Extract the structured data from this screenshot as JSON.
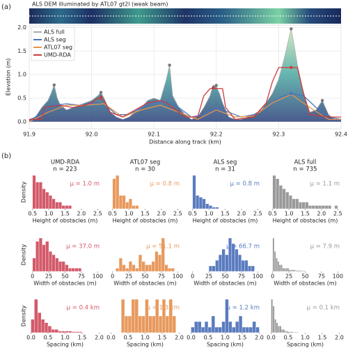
{
  "panel_labels": [
    "(a)",
    "(b)"
  ],
  "chart_data": [
    {
      "type": "line",
      "title": "ALS DEM illuminated by ATL07 gt2l (weak beam)",
      "xlabel": "Distance along track (km)",
      "ylabel": "Elevation (m)",
      "xlim": [
        91.9,
        92.4
      ],
      "xticks": [
        91.9,
        {
          "value": 92.0,
          "label": "92.0"
        },
        92.1,
        92.2,
        92.3,
        92.4
      ],
      "ylim": [
        -0.15,
        2.05
      ],
      "yticks": [
        {
          "value": 0,
          "label": "0.0"
        },
        0.5,
        {
          "value": 1,
          "label": "1.0"
        },
        1.5,
        {
          "value": 2,
          "label": "2.0"
        }
      ],
      "grid": true,
      "legend": "upper left",
      "series": [
        {
          "name": "ALS full",
          "color": "#aaaaaa",
          "area": true,
          "x": [
            91.9,
            91.91,
            91.92,
            91.93,
            91.935,
            91.94,
            91.945,
            91.95,
            91.96,
            91.97,
            91.98,
            91.99,
            92.0,
            92.01,
            92.015,
            92.02,
            92.03,
            92.04,
            92.05,
            92.06,
            92.07,
            92.08,
            92.09,
            92.1,
            92.11,
            92.12,
            92.125,
            92.13,
            92.14,
            92.15,
            92.16,
            92.17,
            92.18,
            92.19,
            92.195,
            92.2,
            92.205,
            92.21,
            92.22,
            92.23,
            92.24,
            92.25,
            92.26,
            92.27,
            92.28,
            92.29,
            92.3,
            92.31,
            92.32,
            92.325,
            92.33,
            92.34,
            92.35,
            92.36,
            92.37,
            92.38,
            92.39,
            92.4
          ],
          "values": [
            0.05,
            0.1,
            0.3,
            0.45,
            0.6,
            0.78,
            0.5,
            0.35,
            0.25,
            0.3,
            0.35,
            0.4,
            0.45,
            0.55,
            0.62,
            0.5,
            0.2,
            0.1,
            0.05,
            0.1,
            0.2,
            0.3,
            0.45,
            0.5,
            0.45,
            0.9,
            1.2,
            0.55,
            0.3,
            0.15,
            0.05,
            0.1,
            0.3,
            0.55,
            0.78,
            0.75,
            0.6,
            0.4,
            0.1,
            0.05,
            0.05,
            0.1,
            0.15,
            0.2,
            0.4,
            0.6,
            0.9,
            1.4,
            1.97,
            1.6,
            1.2,
            0.6,
            0.2,
            0.25,
            0.45,
            0.15,
            0.05,
            0.05
          ]
        },
        {
          "name": "ALS seg",
          "color": "#4a74c0",
          "x": [
            91.9,
            91.92,
            91.94,
            91.96,
            91.98,
            92.0,
            92.02,
            92.04,
            92.06,
            92.08,
            92.1,
            92.12,
            92.14,
            92.16,
            92.18,
            92.2,
            92.22,
            92.24,
            92.26,
            92.28,
            92.3,
            92.32,
            92.34,
            92.36,
            92.38,
            92.4
          ],
          "values": [
            0.0,
            0.2,
            0.35,
            0.38,
            0.35,
            0.4,
            0.38,
            0.15,
            0.15,
            0.3,
            0.4,
            0.42,
            0.3,
            0.1,
            0.15,
            0.3,
            0.2,
            0.1,
            0.15,
            0.3,
            0.5,
            0.6,
            0.55,
            0.3,
            0.1,
            0.05
          ]
        },
        {
          "name": "ATL07 seg",
          "color": "#e8944a",
          "x": [
            91.9,
            91.93,
            91.96,
            91.99,
            92.02,
            92.05,
            92.08,
            92.11,
            92.14,
            92.17,
            92.2,
            92.23,
            92.26,
            92.29,
            92.32,
            92.35,
            92.38,
            92.4
          ],
          "values": [
            0.0,
            0.2,
            0.35,
            0.35,
            0.38,
            0.1,
            0.25,
            0.35,
            0.2,
            0.05,
            0.25,
            0.1,
            0.12,
            0.4,
            0.58,
            0.3,
            0.05,
            0.05
          ]
        },
        {
          "name": "UMD-RDA",
          "color": "#cc3a3a",
          "x": [
            91.9,
            91.92,
            91.925,
            91.95,
            91.97,
            91.99,
            92.0,
            92.01,
            92.02,
            92.03,
            92.05,
            92.07,
            92.09,
            92.11,
            92.12,
            92.13,
            92.15,
            92.17,
            92.18,
            92.19,
            92.21,
            92.215,
            92.23,
            92.26,
            92.28,
            92.29,
            92.3,
            92.33,
            92.34,
            92.35,
            92.38,
            92.4
          ],
          "values": [
            0.05,
            0.05,
            0.3,
            0.35,
            0.3,
            0.35,
            0.4,
            0.5,
            0.45,
            0.2,
            0.1,
            0.25,
            0.4,
            0.45,
            0.4,
            0.3,
            0.1,
            0.1,
            0.55,
            0.7,
            0.7,
            0.3,
            0.05,
            0.1,
            0.4,
            0.85,
            1.15,
            1.15,
            0.6,
            0.15,
            0.1,
            0.1
          ]
        }
      ],
      "markers": {
        "x": [
          91.94,
          92.015,
          92.125,
          92.2,
          92.32,
          92.37,
          92.015,
          92.195,
          92.32,
          92.32
        ],
        "values": [
          0.78,
          0.62,
          1.2,
          0.77,
          1.97,
          0.45,
          0.52,
          0.72,
          1.15,
          0.6
        ],
        "colors": [
          "#777777",
          "#777777",
          "#777777",
          "#777777",
          "#777777",
          "#777777",
          "#cc3a3a",
          "#cc3a3a",
          "#cc3a3a",
          "#4a74c0"
        ]
      }
    },
    {
      "type": "histogram",
      "title": "UMD-RDA",
      "subtitle": "n = 223",
      "ylabel": "Density",
      "xlabel": "Height of obstacles (m)",
      "annotation": "μ = 1.0 m",
      "color": "#d35a6a",
      "xlim": [
        0.4,
        2.6
      ],
      "xticks": [
        0.5,
        {
          "value": 1,
          "label": "1.0"
        },
        1.5,
        {
          "value": 2,
          "label": "2.0"
        },
        2.5
      ],
      "bins": [
        0.5,
        0.6,
        0.7,
        0.8,
        0.9,
        1.0,
        1.1,
        1.2,
        1.3,
        1.4,
        1.5,
        1.6,
        1.7
      ],
      "values": [
        10,
        8,
        8,
        6,
        5,
        4,
        3,
        2,
        2,
        1,
        1,
        1
      ]
    },
    {
      "type": "histogram",
      "title": "ATL07 seg",
      "subtitle": "n = 30",
      "xlabel": "Height of obstacles (m)",
      "annotation": "μ = 0.8 m",
      "color": "#e8995d",
      "xlim": [
        0.4,
        2.6
      ],
      "xticks": [
        0.5,
        {
          "value": 1,
          "label": "1.0"
        },
        1.5,
        {
          "value": 2,
          "label": "2.0"
        },
        2.5
      ],
      "bins": [
        0.5,
        0.6,
        0.7,
        0.8,
        0.9,
        1.0,
        1.1,
        1.2,
        1.3
      ],
      "values": [
        9,
        10,
        4,
        4,
        2,
        3,
        1,
        1
      ]
    },
    {
      "type": "histogram",
      "title": "ALS seg",
      "subtitle": "n = 31",
      "xlabel": "Height of obstacles (m)",
      "annotation": "μ = 0.8 m",
      "color": "#5a7bbf",
      "xlim": [
        0.4,
        2.6
      ],
      "xticks": [
        0.5,
        {
          "value": 1,
          "label": "1.0"
        },
        1.5,
        {
          "value": 2,
          "label": "2.0"
        },
        2.5
      ],
      "bins": [
        0.5,
        0.6,
        0.7,
        0.8,
        0.9,
        1.0,
        1.1,
        1.2,
        1.3
      ],
      "values": [
        20,
        8,
        7,
        6,
        3,
        2,
        1,
        1
      ]
    },
    {
      "type": "histogram",
      "title": "ALS full",
      "subtitle": "n = 735",
      "xlabel": "Height of obstacles (m)",
      "annotation": "μ = 1.1 m",
      "color": "#9a9a9a",
      "xlim": [
        0.4,
        2.6
      ],
      "xticks": [
        0.5,
        {
          "value": 1,
          "label": "1.0"
        },
        1.5,
        {
          "value": 2,
          "label": "2.0"
        },
        2.5
      ],
      "bins": [
        0.5,
        0.6,
        0.7,
        0.8,
        0.9,
        1.0,
        1.1,
        1.2,
        1.3,
        1.4,
        1.5,
        1.6,
        1.7,
        1.8,
        1.9,
        2.0,
        2.1,
        2.2,
        2.3,
        2.4,
        2.5
      ],
      "values": [
        10,
        9,
        7,
        6,
        5,
        4,
        3,
        3,
        2,
        2,
        2,
        1,
        1,
        1,
        1,
        1,
        1,
        1,
        0,
        1
      ]
    },
    {
      "type": "histogram",
      "ylabel": "Density",
      "xlabel": "Width of obstacles (m)",
      "annotation": "μ = 37.0 m",
      "color": "#d35a6a",
      "xlim": [
        -5,
        105
      ],
      "xticks": [
        0,
        25,
        50,
        75,
        100
      ],
      "bins": [
        0,
        5,
        10,
        15,
        20,
        25,
        30,
        35,
        40,
        45,
        50,
        55,
        60,
        65,
        70,
        75
      ],
      "values": [
        4,
        9,
        10,
        8,
        9,
        6,
        5,
        4,
        3,
        3,
        2,
        1,
        1,
        1,
        1
      ]
    },
    {
      "type": "histogram",
      "xlabel": "Width of obstacles (m)",
      "annotation": "μ = 51.1 m",
      "color": "#e8995d",
      "xlim": [
        -5,
        105
      ],
      "xticks": [
        0,
        25,
        50,
        75,
        100
      ],
      "bins": [
        5,
        10,
        15,
        20,
        25,
        30,
        35,
        40,
        45,
        50,
        55,
        60,
        65,
        70,
        75,
        80,
        85,
        90,
        95
      ],
      "values": [
        1,
        4,
        2,
        1,
        3,
        2,
        1,
        5,
        3,
        2,
        2,
        3,
        6,
        5,
        10,
        2,
        1,
        1
      ]
    },
    {
      "type": "histogram",
      "xlabel": "Width of obstacles (m)",
      "annotation": "μ = 66.7 m",
      "color": "#5a7bbf",
      "xlim": [
        -5,
        105
      ],
      "xticks": [
        0,
        25,
        50,
        75,
        100
      ],
      "bins": [
        25,
        30,
        35,
        40,
        45,
        50,
        55,
        60,
        65,
        70,
        75,
        80,
        85,
        90,
        95
      ],
      "values": [
        1,
        1,
        2,
        3,
        4,
        3,
        6,
        5,
        4,
        3,
        2,
        2,
        1,
        1
      ]
    },
    {
      "type": "histogram",
      "xlabel": "Width of obstacles (m)",
      "annotation": "μ = 7.9 m",
      "color": "#9a9a9a",
      "xlim": [
        -5,
        105
      ],
      "xticks": [
        0,
        25,
        50,
        75,
        100
      ],
      "bins": [
        0,
        2.5,
        5,
        7.5,
        10,
        12.5,
        15,
        17.5,
        20,
        22.5,
        25,
        27.5,
        30,
        32.5,
        35,
        37.5,
        40,
        42.5,
        45,
        47.5,
        50
      ],
      "values": [
        10,
        6,
        4,
        3,
        2,
        2,
        1,
        1,
        1,
        1,
        0.5,
        0.5,
        0.5,
        0.5,
        0.3,
        0.3,
        0.3,
        0.3,
        0.2,
        0.2
      ]
    },
    {
      "type": "histogram",
      "ylabel": "Density",
      "xlabel": "Spacing (km)",
      "annotation": "μ = 0.4 km",
      "color": "#d35a6a",
      "xlim": [
        -0.05,
        2.05
      ],
      "xticks": [
        {
          "value": 0,
          "label": "0.0"
        },
        0.5,
        {
          "value": 1,
          "label": "1.0"
        },
        1.5,
        {
          "value": 2,
          "label": "2.0"
        }
      ],
      "bins": [
        0,
        0.1,
        0.2,
        0.3,
        0.4,
        0.5,
        0.6,
        0.7,
        0.8,
        0.9,
        1.0,
        1.1,
        1.2,
        1.3,
        1.4,
        1.5
      ],
      "values": [
        4,
        10,
        6,
        4,
        3,
        2,
        1,
        1,
        0.5,
        0.5,
        0.5,
        0.5,
        0.3,
        0.3,
        0.3
      ]
    },
    {
      "type": "histogram",
      "xlabel": "Spacing (km)",
      "annotation": "μ = 1.3 km",
      "color": "#e8995d",
      "xlim": [
        -0.05,
        2.05
      ],
      "xticks": [
        {
          "value": 0,
          "label": "0.0"
        },
        0.5,
        {
          "value": 1,
          "label": "1.0"
        },
        1.5,
        {
          "value": 2,
          "label": "2.0"
        }
      ],
      "bins": [
        0.3,
        0.4,
        0.5,
        0.6,
        0.7,
        0.8,
        0.9,
        1.0,
        1.1,
        1.2,
        1.3,
        1.4,
        1.5,
        1.6,
        1.7,
        1.8,
        1.9
      ],
      "values": [
        2,
        1,
        1,
        2,
        2,
        1,
        1,
        2,
        1,
        1,
        2,
        1,
        2,
        1,
        2,
        1
      ]
    },
    {
      "type": "histogram",
      "xlabel": "Spacing (km)",
      "annotation": "μ = 1.2 km",
      "color": "#5a7bbf",
      "xlim": [
        -0.05,
        2.05
      ],
      "xticks": [
        {
          "value": 0,
          "label": "0.0"
        },
        0.5,
        {
          "value": 1,
          "label": "1.0"
        },
        1.5,
        {
          "value": 2,
          "label": "2.0"
        }
      ],
      "bins": [
        0,
        0.1,
        0.2,
        0.3,
        0.4,
        0.5,
        0.6,
        0.7,
        0.8,
        0.9,
        1.0,
        1.1,
        1.2,
        1.3,
        1.4,
        1.5,
        1.6,
        1.7,
        1.8,
        1.9,
        2.0
      ],
      "values": [
        1,
        2,
        2,
        1,
        2,
        1,
        3,
        1,
        1,
        2,
        6,
        2,
        1,
        2,
        3,
        1,
        1,
        1,
        2,
        1
      ]
    },
    {
      "type": "histogram",
      "xlabel": "Spacing (km)",
      "annotation": "μ = 0.1 km",
      "color": "#9a9a9a",
      "xlim": [
        -0.05,
        2.05
      ],
      "xticks": [
        {
          "value": 0,
          "label": "0.0"
        },
        0.5,
        {
          "value": 1,
          "label": "1.0"
        },
        1.5,
        {
          "value": 2,
          "label": "2.0"
        }
      ],
      "bins": [
        0,
        0.05,
        0.1,
        0.15,
        0.2,
        0.25,
        0.3,
        0.35,
        0.4,
        0.45,
        0.5,
        0.55,
        0.6,
        0.65,
        0.7,
        0.75,
        0.8
      ],
      "values": [
        10,
        8,
        4,
        3,
        2,
        2,
        1,
        1,
        0.5,
        0.5,
        0.3,
        0.3,
        0.3,
        0.2,
        0.2,
        0.2
      ]
    }
  ]
}
